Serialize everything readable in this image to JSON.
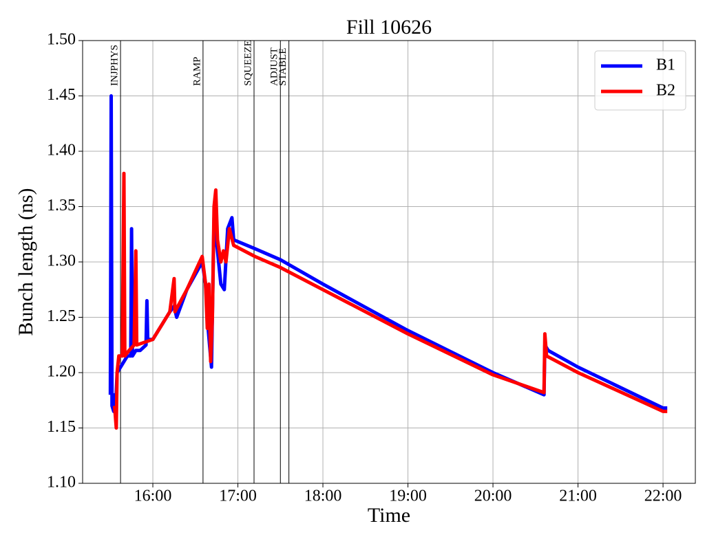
{
  "chart_data": {
    "type": "line",
    "title": "Fill 10626",
    "x_label": "Time",
    "y_label": "Bunch length (ns)",
    "xlim": [
      15.174,
      22.38
    ],
    "ylim": [
      1.1,
      1.5
    ],
    "xticks": [
      {
        "value": 16,
        "label": "16:00"
      },
      {
        "value": 17,
        "label": "17:00"
      },
      {
        "value": 18,
        "label": "18:00"
      },
      {
        "value": 19,
        "label": "19:00"
      },
      {
        "value": 20,
        "label": "20:00"
      },
      {
        "value": 21,
        "label": "21:00"
      },
      {
        "value": 22,
        "label": "22:00"
      }
    ],
    "yticks": [
      {
        "value": 1.1,
        "label": "1.10"
      },
      1.15,
      {
        "value": 1.2,
        "label": "1.20"
      },
      1.25,
      {
        "value": 1.3,
        "label": "1.30"
      },
      1.35,
      {
        "value": 1.4,
        "label": "1.40"
      },
      1.45,
      {
        "value": 1.5,
        "label": "1.50"
      }
    ],
    "grid": true,
    "legend": "upper right",
    "phases": [
      {
        "label": "INJPHYS",
        "x": 15.62
      },
      {
        "label": "RAMP",
        "x": 16.59
      },
      {
        "label": "SQUEEZE",
        "x": 17.19
      },
      {
        "label": "ADJUST",
        "x": 17.5
      },
      {
        "label": "STABLE",
        "x": 17.6
      }
    ],
    "series": [
      {
        "name": "B1",
        "color": "#0000ff",
        "x": [
          15.5,
          15.51,
          15.52,
          15.54,
          15.55,
          15.56,
          15.58,
          15.62,
          15.66,
          15.7,
          15.74,
          15.75,
          15.76,
          15.8,
          15.85,
          15.92,
          15.93,
          15.94,
          16.0,
          16.2,
          16.25,
          16.28,
          16.4,
          16.58,
          16.62,
          16.65,
          16.69,
          16.72,
          16.76,
          16.8,
          16.84,
          16.88,
          16.93,
          16.95,
          17.2,
          17.5,
          18.0,
          19.0,
          20.0,
          20.6,
          20.61,
          20.65,
          21.0,
          22.0,
          22.05
        ],
        "values": [
          1.18,
          1.45,
          1.17,
          1.165,
          1.18,
          1.165,
          1.2,
          1.205,
          1.21,
          1.215,
          1.215,
          1.33,
          1.215,
          1.22,
          1.22,
          1.225,
          1.265,
          1.23,
          1.23,
          1.255,
          1.26,
          1.25,
          1.275,
          1.3,
          1.28,
          1.24,
          1.205,
          1.34,
          1.31,
          1.28,
          1.275,
          1.33,
          1.34,
          1.32,
          1.312,
          1.302,
          1.28,
          1.238,
          1.2,
          1.18,
          1.225,
          1.22,
          1.205,
          1.168,
          1.168
        ]
      },
      {
        "name": "B2",
        "color": "#ff0000",
        "x": [
          15.55,
          15.57,
          15.58,
          15.6,
          15.64,
          15.66,
          15.67,
          15.72,
          15.78,
          15.8,
          15.81,
          16.0,
          16.2,
          16.25,
          16.26,
          16.4,
          16.58,
          16.62,
          16.64,
          16.66,
          16.68,
          16.7,
          16.72,
          16.74,
          16.76,
          16.8,
          16.83,
          16.86,
          16.9,
          16.95,
          17.2,
          17.5,
          18.0,
          19.0,
          20.0,
          20.6,
          20.61,
          20.63,
          21.0,
          22.0,
          22.05
        ],
        "values": [
          1.17,
          1.15,
          1.2,
          1.215,
          1.215,
          1.38,
          1.215,
          1.22,
          1.225,
          1.31,
          1.225,
          1.23,
          1.255,
          1.285,
          1.255,
          1.275,
          1.305,
          1.28,
          1.24,
          1.28,
          1.21,
          1.25,
          1.35,
          1.365,
          1.32,
          1.3,
          1.31,
          1.3,
          1.33,
          1.315,
          1.305,
          1.295,
          1.275,
          1.235,
          1.198,
          1.182,
          1.235,
          1.215,
          1.2,
          1.165,
          1.165
        ]
      }
    ]
  }
}
